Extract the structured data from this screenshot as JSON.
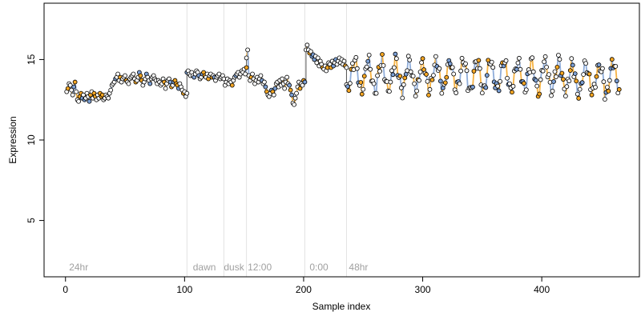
{
  "chart_data": {
    "type": "scatter",
    "title": "",
    "xlabel": "Sample index",
    "ylabel": "Expression",
    "xlim": [
      -18,
      482
    ],
    "ylim": [
      1.5,
      18.5
    ],
    "x_ticks": [
      0,
      100,
      200,
      300,
      400
    ],
    "y_ticks": [
      5,
      10,
      15
    ],
    "grid": false,
    "legend": "none",
    "point_style": "open circles, black outline",
    "line_colors": {
      "orange": "#f5a623",
      "blue": "#7b9fd4"
    },
    "marker_fill_palette": [
      "#ffffff",
      "#f5a623",
      "#7b9fd4"
    ],
    "phase_boundaries": [
      102,
      133,
      152,
      201,
      236
    ],
    "annotations": [
      {
        "text": "24hr",
        "x": 3
      },
      {
        "text": "dawn",
        "x": 107
      },
      {
        "text": "dusk",
        "x": 133
      },
      {
        "text": "12:00",
        "x": 153
      },
      {
        "text": "0:00",
        "x": 205
      },
      {
        "text": "48hr",
        "x": 238
      }
    ],
    "series": [
      {
        "x_start": 1,
        "x_end": 102,
        "values": [
          13.0,
          13.2,
          13.5,
          13.4,
          13.1,
          12.8,
          13.3,
          13.6,
          13.0,
          12.5,
          12.4,
          12.7,
          12.9,
          12.6,
          12.8,
          12.5,
          12.6,
          12.9,
          12.7,
          12.4,
          12.8,
          13.0,
          12.6,
          12.9,
          12.7,
          12.5,
          12.8,
          12.6,
          12.9,
          12.7,
          12.8,
          12.5,
          12.6,
          12.8,
          12.7,
          12.6,
          12.9,
          13.1,
          13.4,
          13.5,
          13.6,
          13.8,
          13.9,
          14.1,
          13.7,
          13.9,
          13.6,
          13.8,
          13.9,
          14.0,
          13.7,
          13.6,
          13.5,
          13.8,
          13.9,
          14.0,
          14.1,
          13.8,
          13.6,
          13.7,
          13.9,
          14.2,
          14.0,
          13.7,
          13.4,
          13.6,
          13.8,
          14.1,
          13.9,
          13.7,
          13.5,
          13.8,
          13.9,
          14.0,
          13.8,
          13.7,
          13.5,
          13.7,
          13.6,
          13.4,
          13.5,
          13.8,
          13.6,
          13.2,
          13.5,
          13.7,
          13.8,
          13.6,
          13.3,
          13.4,
          13.6,
          13.7,
          13.5,
          13.4,
          13.2,
          13.5,
          13.3,
          13.1,
          12.9,
          13.0,
          12.7,
          12.9
        ]
      },
      {
        "x_start": 102,
        "x_end": 133,
        "values": [
          14.2,
          14.3,
          14.1,
          14.0,
          14.2,
          14.0,
          13.9,
          14.1,
          14.3,
          14.2,
          14.0,
          13.8,
          13.9,
          14.1,
          14.2,
          14.0,
          13.9,
          14.1,
          13.8,
          14.0,
          14.1,
          13.9,
          14.0,
          13.9,
          13.7,
          13.9,
          14.0,
          14.1,
          13.8,
          13.9,
          14.0,
          13.8
        ]
      },
      {
        "x_start": 134,
        "x_end": 152,
        "values": [
          13.4,
          13.6,
          13.8,
          13.5,
          13.7,
          13.6,
          13.4,
          13.7,
          13.9,
          14.0,
          14.1,
          14.2,
          13.9,
          14.1,
          14.3,
          14.2,
          14.4,
          14.1,
          14.5
        ]
      },
      {
        "x_start": 152,
        "x_end": 201,
        "values": [
          15.1,
          15.6,
          14.0,
          13.7,
          13.9,
          14.1,
          13.8,
          13.5,
          13.7,
          13.9,
          13.6,
          13.8,
          14.0,
          13.7,
          13.5,
          13.6,
          13.3,
          13.0,
          12.8,
          12.7,
          12.9,
          13.1,
          13.0,
          12.8,
          13.2,
          13.5,
          13.6,
          13.3,
          13.7,
          13.4,
          13.8,
          13.5,
          13.2,
          13.6,
          13.9,
          13.5,
          13.4,
          13.1,
          12.8,
          12.3,
          12.2,
          12.6,
          12.9,
          13.3,
          13.6,
          13.2,
          13.5,
          13.4,
          13.7,
          13.6
        ]
      },
      {
        "x_start": 202,
        "x_end": 236,
        "values": [
          15.6,
          15.9,
          15.6,
          15.4,
          15.5,
          15.2,
          15.3,
          15.0,
          15.2,
          14.8,
          15.1,
          14.6,
          14.9,
          14.7,
          14.5,
          14.4,
          14.6,
          14.3,
          14.5,
          14.8,
          14.7,
          14.5,
          14.9,
          14.6,
          14.8,
          15.0,
          14.7,
          14.9,
          15.1,
          14.8,
          15.0,
          14.7,
          14.9,
          14.6,
          14.5
        ]
      },
      {
        "x_start": 236,
        "x_end": 465,
        "values": [],
        "pattern": "oscillating around 14 with amplitude ~0.9, range ~12.2-15.5"
      }
    ]
  }
}
